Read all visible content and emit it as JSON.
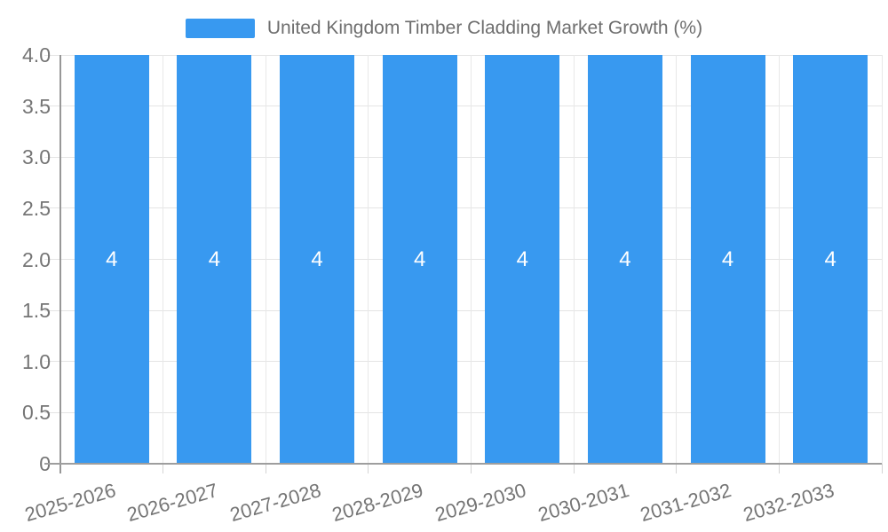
{
  "legend": {
    "label": "United Kingdom Timber Cladding Market Growth (%)"
  },
  "chart_data": {
    "type": "bar",
    "title": "United Kingdom Timber Cladding Market Growth (%)",
    "categories": [
      "2025-2026",
      "2026-2027",
      "2027-2028",
      "2028-2029",
      "2029-2030",
      "2030-2031",
      "2031-2032",
      "2032-2033"
    ],
    "series": [
      {
        "name": "United Kingdom Timber Cladding Market Growth (%)",
        "values": [
          4,
          4,
          4,
          4,
          4,
          4,
          4,
          4
        ]
      }
    ],
    "bar_value_labels": [
      "4",
      "4",
      "4",
      "4",
      "4",
      "4",
      "4",
      "4"
    ],
    "xlabel": "",
    "ylabel": "",
    "ylim": [
      0,
      4
    ],
    "yticks": [
      0,
      0.5,
      1,
      1.5,
      2,
      2.5,
      3,
      3.5,
      4
    ],
    "ytick_labels": [
      "0",
      "0.5",
      "1.0",
      "1.5",
      "2.0",
      "2.5",
      "3.0",
      "3.5",
      "4.0"
    ],
    "grid": true,
    "legend_position": "top-center",
    "colors": {
      "bar": "#3899f0",
      "axis_label": "#757575",
      "legend_text": "#6e6e6e",
      "bar_label": "#ffffff",
      "gridline": "#e4e4e4",
      "axis_line": "#9e9e9e"
    }
  }
}
